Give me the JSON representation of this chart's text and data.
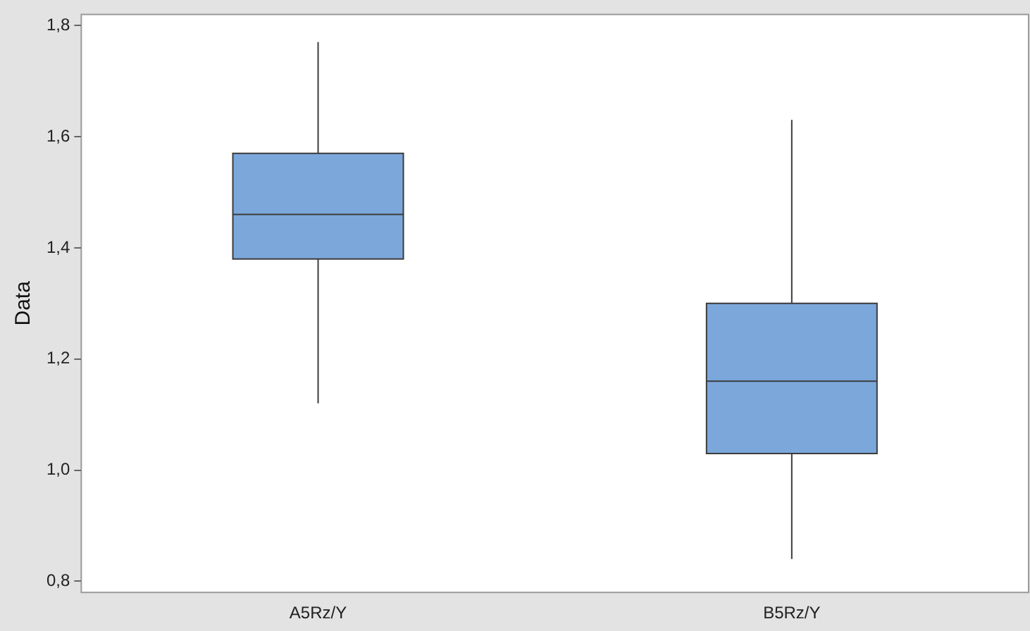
{
  "chart_data": {
    "type": "box",
    "ylabel": "Data",
    "categories": [
      "A5Rz/Y",
      "B5Rz/Y"
    ],
    "boxes": [
      {
        "low": 1.12,
        "q1": 1.38,
        "median": 1.46,
        "q3": 1.57,
        "high": 1.77
      },
      {
        "low": 0.84,
        "q1": 1.03,
        "median": 1.16,
        "q3": 1.3,
        "high": 1.63
      }
    ],
    "color": "#7ba7db",
    "ylim": [
      0.78,
      1.82
    ],
    "yticks": [
      {
        "value": 0.8,
        "label": "0,8"
      },
      {
        "value": 1.0,
        "label": "1,0"
      },
      {
        "value": 1.2,
        "label": "1,2"
      },
      {
        "value": 1.4,
        "label": "1,4"
      },
      {
        "value": 1.6,
        "label": "1,6"
      },
      {
        "value": 1.8,
        "label": "1,8"
      }
    ],
    "grid": false
  }
}
